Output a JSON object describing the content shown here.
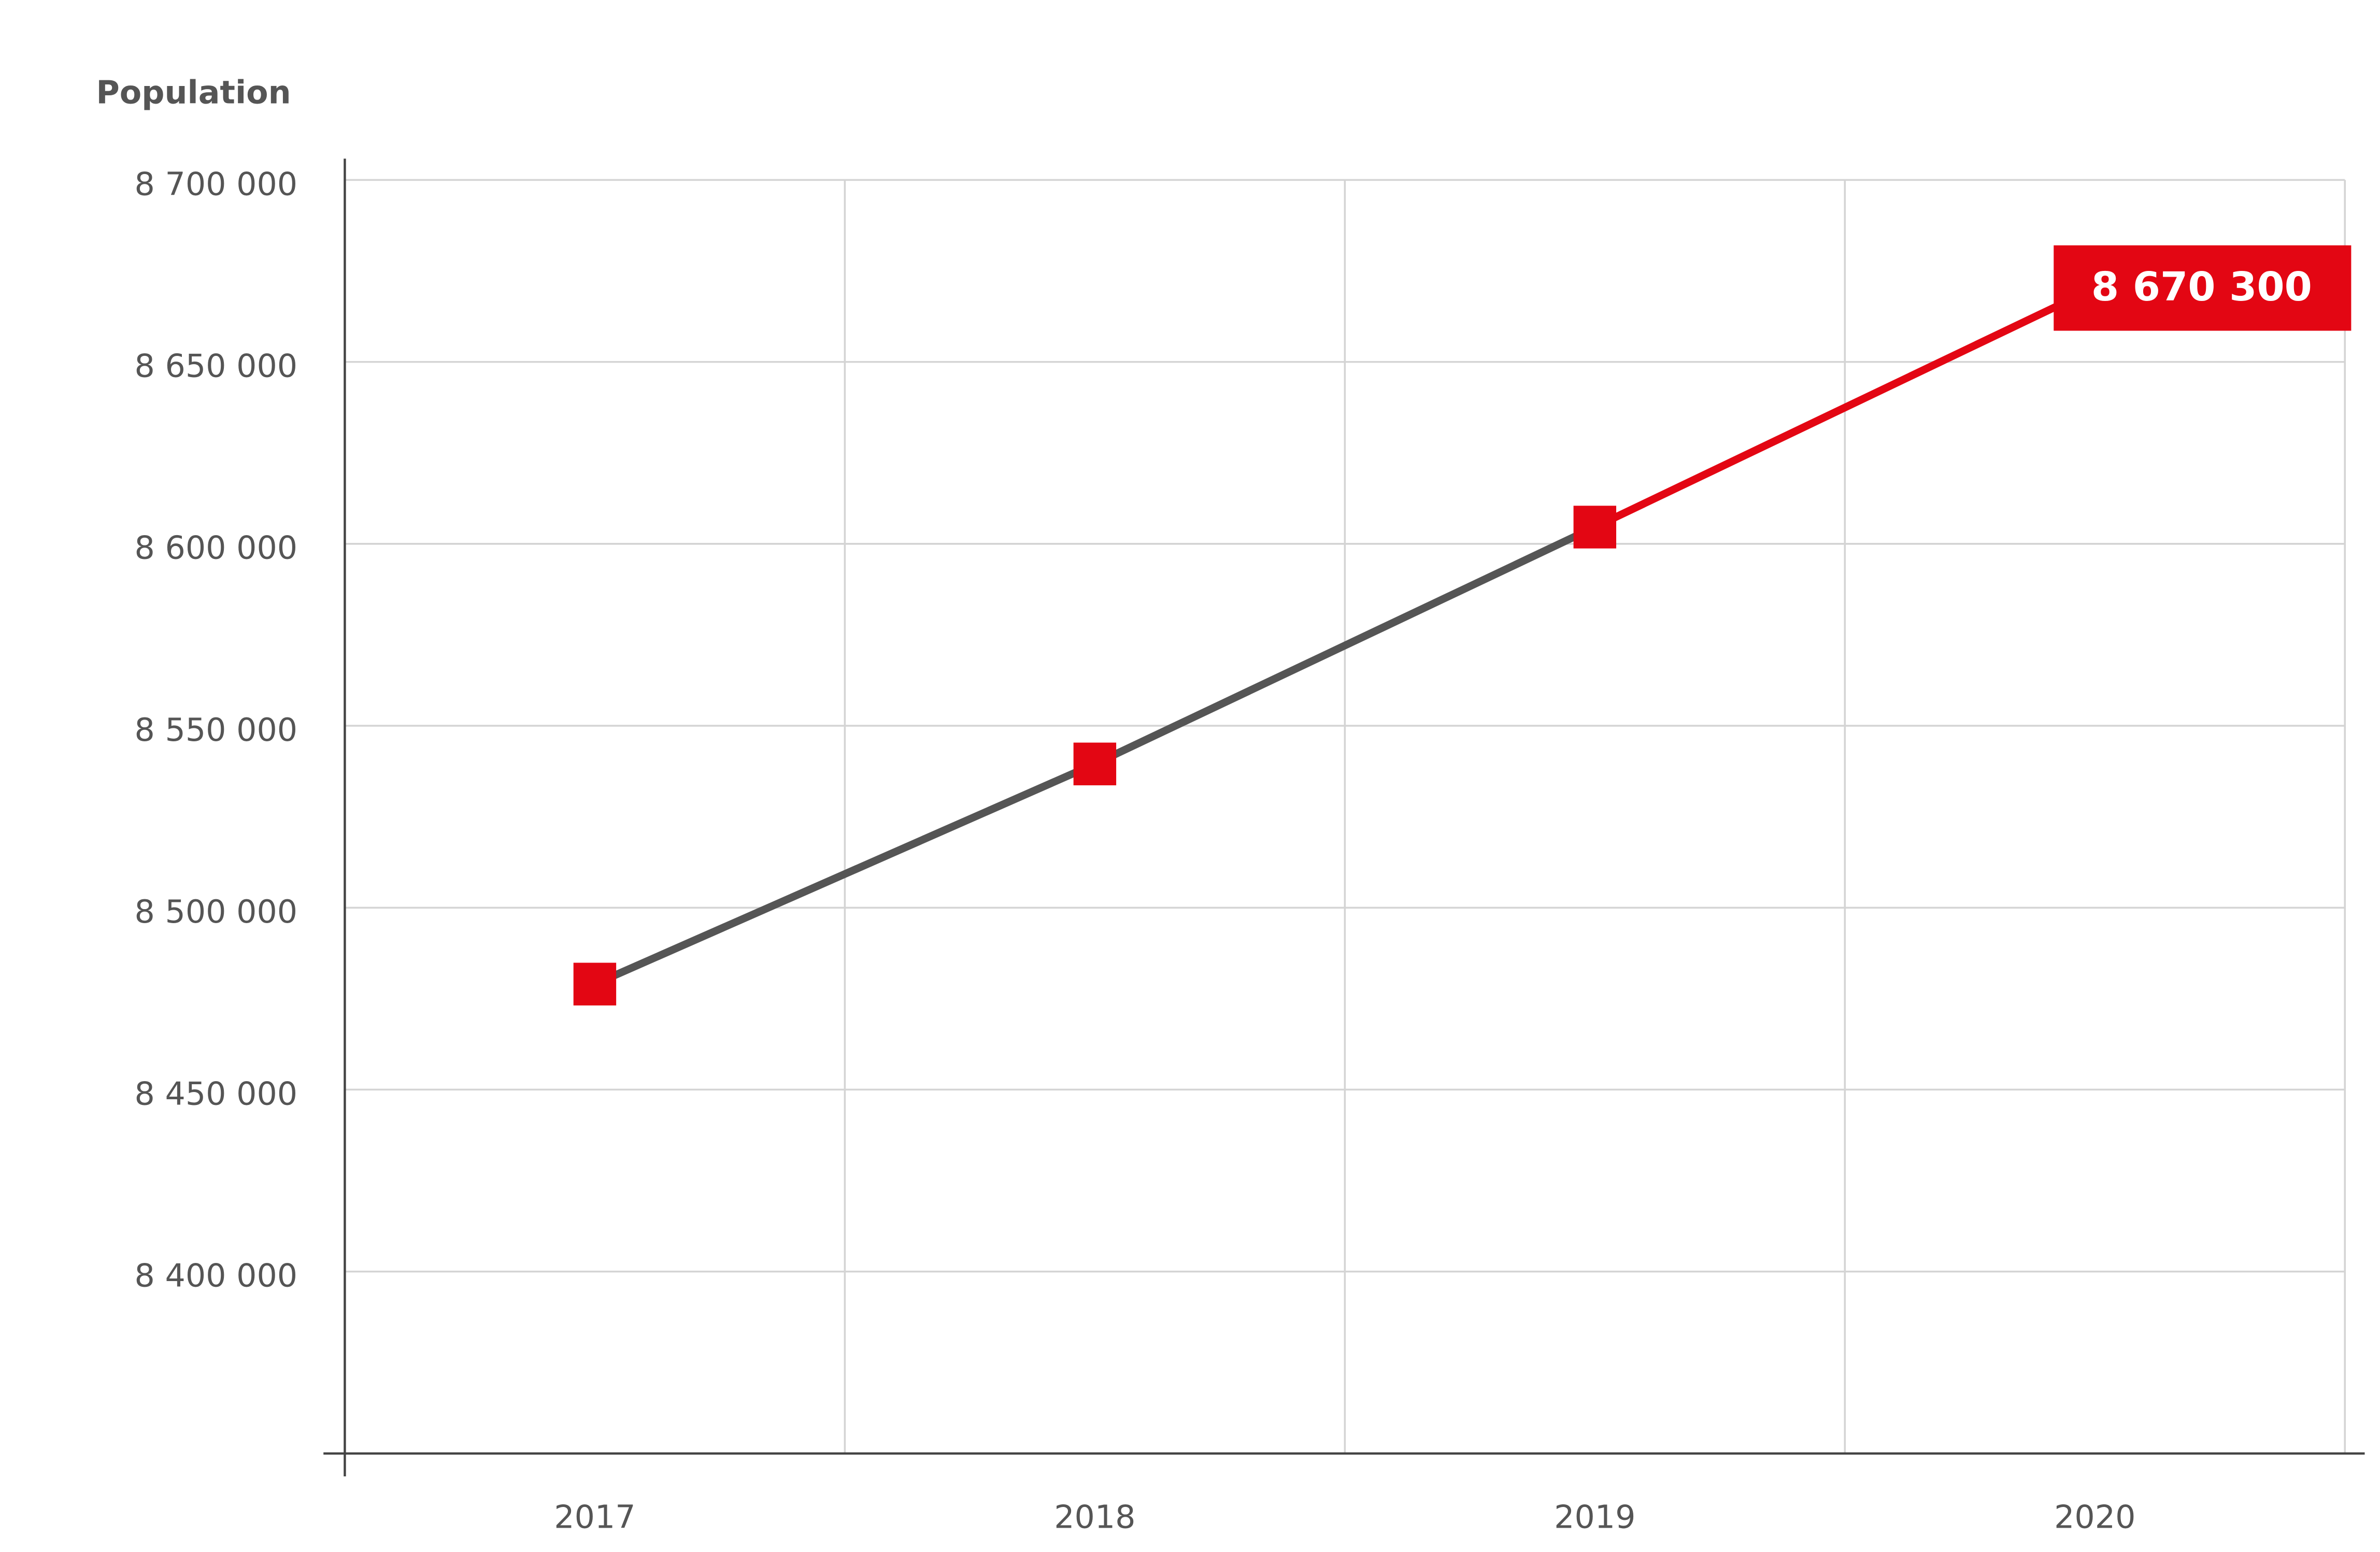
{
  "chart_data": {
    "type": "line",
    "y_label": "Population",
    "categories": [
      "2017",
      "2018",
      "2019",
      "2020"
    ],
    "series": [
      {
        "name": "Population",
        "color": "#555555",
        "highlight_color": "#e30613",
        "marker_color": "#e30613",
        "values": [
          8479000,
          8539500,
          8604600,
          8670300
        ],
        "value_labels": [
          null,
          null,
          null,
          "8 670 300"
        ]
      }
    ],
    "ylim": [
      8350000,
      8700000
    ],
    "yticks": [
      {
        "value": 8400000,
        "label": "8 400 000"
      },
      {
        "value": 8450000,
        "label": "8 450 000"
      },
      {
        "value": 8500000,
        "label": "8 500 000"
      },
      {
        "value": 8550000,
        "label": "8 550 000"
      },
      {
        "value": 8600000,
        "label": "8 600 000"
      },
      {
        "value": 8650000,
        "label": "8 650 000"
      },
      {
        "value": 8700000,
        "label": "8 700 000"
      }
    ],
    "grid": true
  }
}
